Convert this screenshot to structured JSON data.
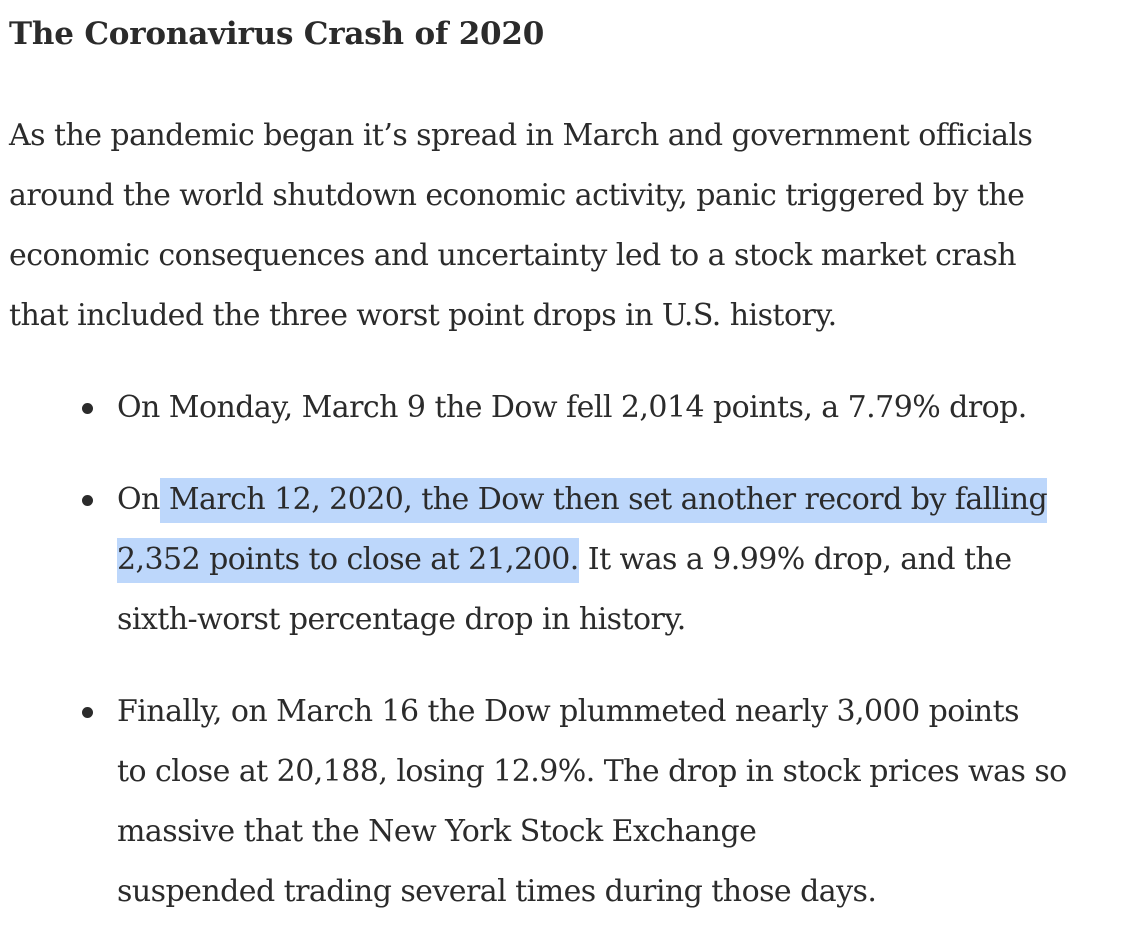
{
  "article": {
    "heading": "The Coronavirus Crash of 2020",
    "intro_lines": [
      "As the pandemic began it’s spread in March and government officials",
      "around the world shutdown economic activity, panic triggered by the",
      "economic consequences and uncertainty led to a stock market crash",
      "that included the three worst point drops in U.S. history."
    ],
    "bullets": [
      {
        "lines": [
          "On Monday, March 9 the Dow fell 2,014 points, a 7.79% drop."
        ]
      },
      {
        "line1_pre": "On",
        "line1_highlight": " March 12, 2020, the Dow then set another record by falling",
        "line2_highlight": "2,352 points to close at 21,200.",
        "line2_post": " It was a 9.99% drop, and the",
        "line3": "sixth-worst percentage drop in history."
      },
      {
        "lines": [
          "Finally, on March 16 the Dow plummeted nearly 3,000 points",
          "to close at 20,188, losing 12.9%. The drop in stock prices was so",
          "massive that the New York Stock Exchange",
          "suspended trading several times during those days."
        ]
      }
    ]
  },
  "colors": {
    "text": "#2b2b2b",
    "selection_highlight": "#bdd7fb",
    "background": "#ffffff"
  }
}
